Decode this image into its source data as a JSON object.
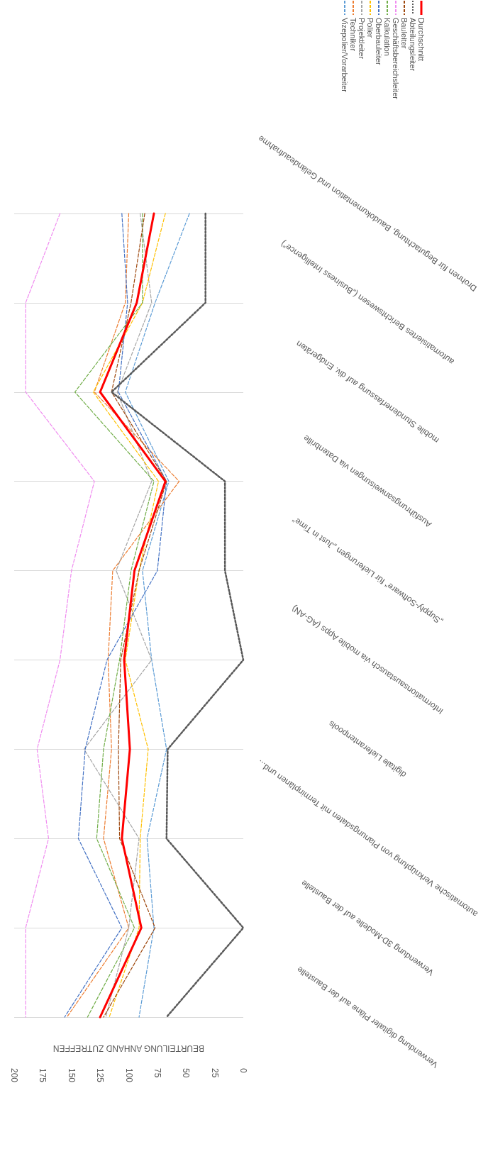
{
  "chart_data": {
    "type": "line",
    "orientation": "horizontal",
    "xlabel": "BEURTEILUNG ANHAND ZUTREFFEN",
    "categories": [
      "Drohnen für Begutachtung, Baudokumentation und Geländeaufnahme",
      "automatisiertes Berichtswesen („Business Intelligence“)",
      "mobile Stundenerfassung auf div. Endgeräten",
      "Ausführungsanweisungen via Datenbrille",
      "„Supply-Software“ für Lieferungen „Just in Time“",
      "Informationsaustausch via mobile Apps (AG-AN)",
      "digitale Lieferantenpools",
      "automatische Verknüpfung von Planungsdaten mit Terminplänen und...",
      "Verwendung 3D-Modelle auf der Baustelle",
      "Verwendung digitaler Pläne auf der Baustelle"
    ],
    "series": [
      {
        "name": "Vizepolier/Vorarbeiter",
        "color": "#5b9bd5",
        "line_style": "dashed",
        "values": [
          47,
          77,
          103,
          65,
          88,
          80,
          67,
          84,
          78,
          91
        ]
      },
      {
        "name": "Techniker",
        "color": "#ed7d31",
        "line_style": "dashed",
        "values": [
          100,
          103,
          130,
          56,
          114,
          118,
          115,
          122,
          100,
          154
        ]
      },
      {
        "name": "Projektleiter",
        "color": "#a5a5a5",
        "line_style": "dashed",
        "values": [
          90,
          80,
          110,
          80,
          111,
          80,
          139,
          91,
          100,
          120
        ]
      },
      {
        "name": "Polier",
        "color": "#ffc000",
        "line_style": "dashed",
        "values": [
          68,
          88,
          131,
          74,
          91,
          103,
          83,
          90,
          91,
          117
        ]
      },
      {
        "name": "Oberbauleiter",
        "color": "#4472c4",
        "line_style": "dashed",
        "values": [
          106,
          101,
          109,
          67,
          75,
          119,
          138,
          144,
          106,
          156
        ]
      },
      {
        "name": "Kalkulation",
        "color": "#70ad47",
        "line_style": "dashed",
        "values": [
          88,
          88,
          147,
          78,
          98,
          108,
          122,
          128,
          95,
          136
        ]
      },
      {
        "name": "Geschäftsbereichsleiter",
        "color": "#f08cf0",
        "line_style": "dashed",
        "values": [
          160,
          190,
          190,
          130,
          150,
          160,
          180,
          170,
          190,
          190
        ]
      },
      {
        "name": "Bauleiter",
        "color": "#9e480e",
        "line_style": "dashed",
        "values": [
          86,
          98,
          115,
          67,
          91,
          107,
          109,
          108,
          77,
          122
        ]
      },
      {
        "name": "Abteilungsleiter",
        "color": "#595959",
        "line_style": "dotted",
        "values": [
          33,
          33,
          115,
          16,
          16,
          0,
          66,
          67,
          0,
          67
        ]
      },
      {
        "name": "Durchschnitt",
        "color": "#ff0000",
        "line_style": "solid",
        "values": [
          78,
          93,
          125,
          68,
          95,
          104,
          99,
          106,
          89,
          125
        ]
      }
    ],
    "xlim": [
      200,
      0
    ],
    "xticks": [
      0,
      25,
      50,
      75,
      100,
      125,
      150,
      175,
      200
    ],
    "grid": "y",
    "legend": "top",
    "marker": "none"
  }
}
